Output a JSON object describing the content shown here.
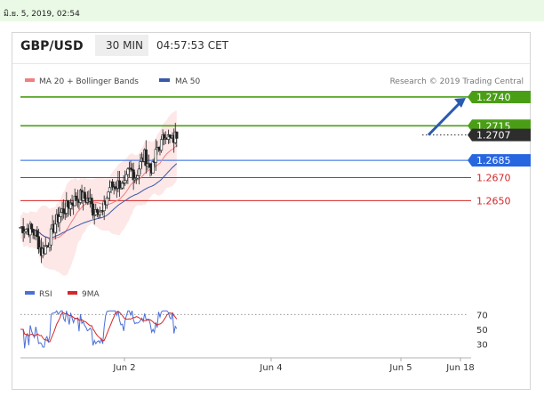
{
  "timestamp": "มิ.ย. 5, 2019, 02:54",
  "header": {
    "pair": "GBP/USD",
    "timeframe": "30 MIN",
    "time": "04:57:53 CET"
  },
  "legend": {
    "ma20": {
      "label": "MA 20 + Bollinger Bands",
      "color": "#f08080"
    },
    "ma50": {
      "label": "MA 50",
      "color": "#3a5aa8"
    },
    "copyright": "Research © 2019 Trading Central"
  },
  "rsi_legend": {
    "rsi": "RSI",
    "ma9": "9MA"
  },
  "colors": {
    "green": "#4a9e16",
    "blue": "#2866e0",
    "red": "#d42828",
    "dark": "#2d2d2d",
    "band": "#fde3e3"
  },
  "chart_data": {
    "type": "candlestick",
    "ylim": [
      1.259,
      1.275
    ],
    "levels": [
      {
        "value": 1.274,
        "label": "1.2740",
        "style": "green"
      },
      {
        "value": 1.2715,
        "label": "1.2715",
        "style": "green"
      },
      {
        "value": 1.2707,
        "label": "1.2707",
        "style": "current"
      },
      {
        "value": 1.2685,
        "label": "1.2685",
        "style": "blue"
      },
      {
        "value": 1.267,
        "label": "1.2670",
        "style": "red"
      },
      {
        "value": 1.265,
        "label": "1.2650",
        "style": "red"
      }
    ],
    "arrow": {
      "from": 1.2707,
      "to": 1.274
    },
    "x_ticks": [
      "Jun 2",
      "Jun 4",
      "Jun 5",
      "Jun 18"
    ],
    "close_path": [
      [
        0,
        1.2627
      ],
      [
        0.08,
        1.2625
      ],
      [
        0.12,
        1.2622
      ],
      [
        0.17,
        1.2605
      ],
      [
        0.22,
        1.2612
      ],
      [
        0.28,
        1.263
      ],
      [
        0.33,
        1.264
      ],
      [
        0.38,
        1.2645
      ],
      [
        0.43,
        1.265
      ],
      [
        0.48,
        1.2654
      ],
      [
        0.52,
        1.2652
      ],
      [
        0.56,
        1.265
      ],
      [
        0.59,
        1.264
      ],
      [
        0.62,
        1.2645
      ],
      [
        0.66,
        1.2638
      ],
      [
        0.69,
        1.265
      ],
      [
        0.72,
        1.2662
      ],
      [
        0.76,
        1.2663
      ],
      [
        0.8,
        1.2665
      ],
      [
        0.84,
        1.266
      ],
      [
        0.87,
        1.2675
      ],
      [
        0.9,
        1.2676
      ],
      [
        0.93,
        1.267
      ],
      [
        0.96,
        1.268
      ],
      [
        1.0,
        1.2689
      ],
      [
        1.04,
        1.268
      ],
      [
        1.07,
        1.2678
      ],
      [
        1.1,
        1.2695
      ],
      [
        1.14,
        1.27
      ],
      [
        1.17,
        1.271
      ],
      [
        1.2,
        1.2703
      ],
      [
        1.23,
        1.2702
      ],
      [
        1.26,
        1.2708
      ]
    ],
    "rsi": {
      "ylim": [
        20,
        80
      ],
      "ticks": [
        70,
        50,
        30
      ],
      "reference": 70
    }
  }
}
